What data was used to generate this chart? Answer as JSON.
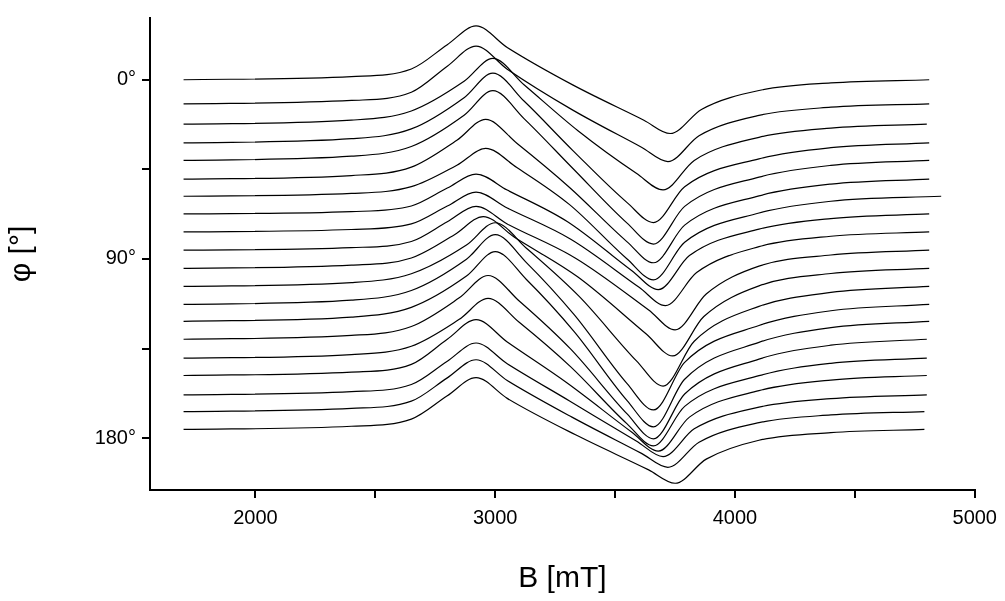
{
  "chart_data": {
    "type": "line",
    "xlabel": "B [mT]",
    "ylabel": "φ [°]",
    "xlim": [
      1560,
      5000
    ],
    "xticks": [
      2000,
      {
        "value": 2500,
        "label": null
      },
      3000,
      {
        "value": 3500,
        "label": null
      },
      4000,
      {
        "value": 4500,
        "label": null
      },
      5000
    ],
    "ylim": [
      206,
      -31
    ],
    "yticks": [
      {
        "value": 0,
        "label": "0°"
      },
      {
        "value": 45,
        "label": null
      },
      {
        "value": 90,
        "label": "90°"
      },
      {
        "value": 135,
        "label": null
      },
      {
        "value": 180,
        "label": "180°"
      }
    ],
    "grid": false,
    "legend": false,
    "marker": "none",
    "line_style": "solid",
    "series": [
      {
        "color": "#000000",
        "x": [
          1700,
          2400,
          2650,
          2800,
          2920,
          3050,
          3325,
          3620,
          3730,
          3860,
          4100,
          4400,
          4810
        ],
        "values": [
          0,
          -1.6,
          -5.4,
          -17.6,
          -27,
          -16.2,
          2.7,
          20.3,
          27,
          14.9,
          5.4,
          1.6,
          0
        ]
      },
      {
        "color": "#000000",
        "x": [
          1700,
          2400,
          2650,
          2800,
          2920,
          3050,
          3320,
          3610,
          3720,
          3850,
          4100,
          4400,
          4810
        ],
        "values": [
          12.1,
          10.4,
          6.3,
          -6.8,
          -16.9,
          -5.3,
          15.0,
          33.9,
          41.1,
          28.1,
          17.9,
          13.8,
          12.1
        ]
      },
      {
        "color": "#000000",
        "x": [
          1700,
          2400,
          2650,
          2870,
          2990,
          3120,
          3345,
          3590,
          3700,
          3830,
          4100,
          4400,
          4800
        ],
        "values": [
          22.3,
          20.3,
          15.7,
          0.8,
          -10.7,
          2.5,
          25.6,
          47.1,
          55.3,
          40.5,
          28.9,
          24.3,
          22.3
        ]
      },
      {
        "color": "#000000",
        "x": [
          1700,
          2400,
          2650,
          2870,
          2990,
          3120,
          3325,
          3550,
          3660,
          3790,
          4100,
          4400,
          4810
        ],
        "values": [
          31.7,
          29.6,
          24.7,
          9.0,
          -3.3,
          10.7,
          35.7,
          61.7,
          71.7,
          53.7,
          39.7,
          34.1,
          31.7
        ]
      },
      {
        "color": "#000000",
        "x": [
          1700,
          2400,
          2650,
          2870,
          2990,
          3120,
          3325,
          3550,
          3660,
          3790,
          4100,
          4400,
          4810
        ],
        "values": [
          40.5,
          38.4,
          33.5,
          17.8,
          5.5,
          19.5,
          44.7,
          72.0,
          82.5,
          63.6,
          48.9,
          43.0,
          40.5
        ]
      },
      {
        "color": "#000000",
        "x": [
          1700,
          2400,
          2650,
          2840,
          2960,
          3090,
          3310,
          3550,
          3660,
          3790,
          4100,
          4400,
          4810
        ],
        "values": [
          49.9,
          48.1,
          43.9,
          30.4,
          19.9,
          31.9,
          54.1,
          81.4,
          91.9,
          73.0,
          58.3,
          52.4,
          49.9
        ]
      },
      {
        "color": "#000000",
        "x": [
          1700,
          2400,
          2650,
          2840,
          2960,
          3090,
          3310,
          3550,
          3660,
          3790,
          4100,
          4400,
          4860
        ],
        "values": [
          58.5,
          57.1,
          53.7,
          42.9,
          34.5,
          44.1,
          62.7,
          90.0,
          100.5,
          81.6,
          66.9,
          61.0,
          58.5
        ]
      },
      {
        "color": "#000000",
        "x": [
          1700,
          2400,
          2650,
          2800,
          2920,
          3050,
          3300,
          3570,
          3680,
          3810,
          4100,
          4400,
          4810
        ],
        "values": [
          67.4,
          66.2,
          63.4,
          54.4,
          47.4,
          55.4,
          71.2,
          95.9,
          105.4,
          88.3,
          75.0,
          69.7,
          67.4
        ]
      },
      {
        "color": "#000000",
        "x": [
          1700,
          2400,
          2650,
          2800,
          2920,
          3050,
          3315,
          3600,
          3710,
          3840,
          4100,
          4400,
          4810
        ],
        "values": [
          76.4,
          75.2,
          72.4,
          63.4,
          56.4,
          64.4,
          80.1,
          104.2,
          113.4,
          96.8,
          83.8,
          78.6,
          76.4
        ]
      },
      {
        "color": "#000000",
        "x": [
          1700,
          2400,
          2650,
          2800,
          2920,
          3050,
          3335,
          3640,
          3750,
          3880,
          4100,
          4400,
          4810
        ],
        "values": [
          85.6,
          84.3,
          81.2,
          71.3,
          63.6,
          72.4,
          89.6,
          115.6,
          125.6,
          107.6,
          93.6,
          88.0,
          85.6
        ]
      },
      {
        "color": "#000000",
        "x": [
          1700,
          2400,
          2650,
          2830,
          2950,
          3080,
          3345,
          3630,
          3740,
          3870,
          4100,
          4400,
          4810
        ],
        "values": [
          94.7,
          93.1,
          89.5,
          77.8,
          68.7,
          79.1,
          99.1,
          127.7,
          138.7,
          118.9,
          103.5,
          97.3,
          94.7
        ]
      },
      {
        "color": "#000000",
        "x": [
          1700,
          2400,
          2650,
          2880,
          3000,
          3130,
          3350,
          3590,
          3700,
          3830,
          4100,
          4400,
          4810
        ],
        "values": [
          103.8,
          101.9,
          97.4,
          83.0,
          71.8,
          84.6,
          108.8,
          141.3,
          153.8,
          131.3,
          113.8,
          106.8,
          103.8
        ]
      },
      {
        "color": "#000000",
        "x": [
          1700,
          2400,
          2650,
          2880,
          3000,
          3130,
          3330,
          3550,
          3660,
          3790,
          4100,
          4400,
          4810
        ],
        "values": [
          112.8,
          110.7,
          105.8,
          90.1,
          77.8,
          91.8,
          118.1,
          152.6,
          165.8,
          141.9,
          123.4,
          116.0,
          112.8
        ]
      },
      {
        "color": "#000000",
        "x": [
          1700,
          2400,
          2650,
          2880,
          3000,
          3130,
          3330,
          3550,
          3660,
          3790,
          4100,
          4400,
          4810
        ],
        "values": [
          121.3,
          119.2,
          114.3,
          98.6,
          86.3,
          100.3,
          126.6,
          161.1,
          174.3,
          150.4,
          131.9,
          124.5,
          121.3
        ]
      },
      {
        "color": "#000000",
        "x": [
          1700,
          2400,
          2650,
          2850,
          2970,
          3100,
          3315,
          3550,
          3660,
          3790,
          4100,
          4400,
          4800
        ],
        "values": [
          130.3,
          128.4,
          123.9,
          109.5,
          98.3,
          111.1,
          135.3,
          167.8,
          180.3,
          157.8,
          140.3,
          133.3,
          130.3
        ]
      },
      {
        "color": "#000000",
        "x": [
          1700,
          2400,
          2650,
          2850,
          2970,
          3100,
          3315,
          3550,
          3660,
          3790,
          4100,
          4400,
          4800
        ],
        "values": [
          139.8,
          138.0,
          133.8,
          120.3,
          109.8,
          121.8,
          144.2,
          172.8,
          183.8,
          164.0,
          148.6,
          142.4,
          139.8
        ]
      },
      {
        "color": "#000000",
        "x": [
          1700,
          2400,
          2650,
          2800,
          2920,
          3050,
          3300,
          3570,
          3680,
          3810,
          4100,
          4400,
          4800
        ],
        "values": [
          148.5,
          146.8,
          142.9,
          130.3,
          120.5,
          131.7,
          152.3,
          177.0,
          186.5,
          169.4,
          156.1,
          150.8,
          148.5
        ]
      },
      {
        "color": "#000000",
        "x": [
          1700,
          2400,
          2650,
          2800,
          2920,
          3050,
          3310,
          3590,
          3700,
          3830,
          4100,
          4400,
          4800
        ],
        "values": [
          158.2,
          156.6,
          153.0,
          141.3,
          132.2,
          142.6,
          161.3,
          181.5,
          189.2,
          175.3,
          164.4,
          160.1,
          158.2
        ]
      },
      {
        "color": "#000000",
        "x": [
          1700,
          2400,
          2650,
          2800,
          2920,
          3050,
          3320,
          3610,
          3720,
          3850,
          4100,
          4400,
          4790
        ],
        "values": [
          166.6,
          165.0,
          161.4,
          149.7,
          140.6,
          151.0,
          169.4,
          187.6,
          194.6,
          182.0,
          172.2,
          168.3,
          166.6
        ]
      },
      {
        "color": "#000000",
        "x": [
          1700,
          2400,
          2650,
          2800,
          2920,
          3050,
          3335,
          3640,
          3750,
          3880,
          4100,
          4400,
          4790
        ],
        "values": [
          175.6,
          174.0,
          170.4,
          158.7,
          149.6,
          160.0,
          178.3,
          195.9,
          202.6,
          190.5,
          181.0,
          177.2,
          175.6
        ]
      }
    ]
  }
}
